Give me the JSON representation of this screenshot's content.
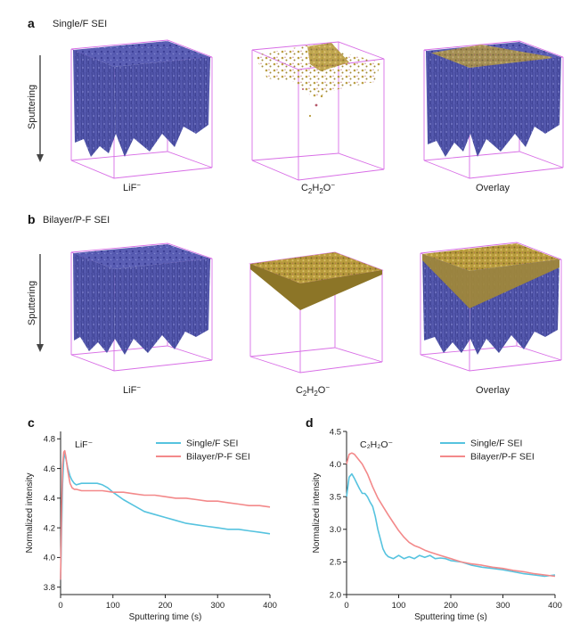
{
  "row_a": {
    "label": "a",
    "title": "Single/F SEI",
    "sputtering": "Sputtering",
    "captions": [
      "LiF",
      "C",
      "Overlay"
    ]
  },
  "row_b": {
    "label": "b",
    "title": "Bilayer/P-F SEI",
    "sputtering": "Sputtering",
    "captions": [
      "LiF",
      "C",
      "Overlay"
    ]
  },
  "species": {
    "lif_sup": "−",
    "c2h2o_parts": [
      "C",
      "2",
      "H",
      "2",
      "O",
      "−"
    ]
  },
  "colors": {
    "single": "#56c3df",
    "bilayer": "#f3898a",
    "lif": "#5b5fb5",
    "c2h2o": "#b79a3a",
    "box": "#d86ee6"
  },
  "chart_data": [
    {
      "panel": "c",
      "type": "line",
      "annotation": "LiF⁻",
      "xlabel": "Sputtering time (s)",
      "ylabel": "Normalized intensity",
      "xlim": [
        0,
        400
      ],
      "ylim": [
        3.75,
        4.85
      ],
      "xticks": [
        0,
        100,
        200,
        300,
        400
      ],
      "yticks": [
        3.8,
        4.0,
        4.2,
        4.4,
        4.6,
        4.8
      ],
      "legend_position": "top-right",
      "series": [
        {
          "name": "Single/F SEI",
          "color": "#56c3df",
          "x": [
            0,
            2,
            4,
            6,
            8,
            10,
            14,
            18,
            22,
            26,
            30,
            40,
            50,
            60,
            70,
            80,
            90,
            100,
            120,
            140,
            160,
            180,
            200,
            220,
            240,
            260,
            280,
            300,
            320,
            340,
            360,
            380,
            400
          ],
          "y": [
            3.85,
            4.2,
            4.5,
            4.66,
            4.7,
            4.67,
            4.6,
            4.55,
            4.52,
            4.5,
            4.49,
            4.5,
            4.5,
            4.5,
            4.5,
            4.49,
            4.47,
            4.44,
            4.39,
            4.35,
            4.31,
            4.29,
            4.27,
            4.25,
            4.23,
            4.22,
            4.21,
            4.2,
            4.19,
            4.19,
            4.18,
            4.17,
            4.16
          ]
        },
        {
          "name": "Bilayer/P-F SEI",
          "color": "#f3898a",
          "x": [
            0,
            2,
            4,
            6,
            8,
            10,
            14,
            18,
            22,
            26,
            30,
            40,
            60,
            80,
            100,
            120,
            140,
            160,
            180,
            200,
            220,
            240,
            260,
            280,
            300,
            320,
            340,
            360,
            380,
            400
          ],
          "y": [
            3.85,
            4.35,
            4.62,
            4.71,
            4.72,
            4.68,
            4.58,
            4.5,
            4.47,
            4.46,
            4.46,
            4.45,
            4.45,
            4.45,
            4.44,
            4.44,
            4.43,
            4.42,
            4.42,
            4.41,
            4.4,
            4.4,
            4.39,
            4.38,
            4.38,
            4.37,
            4.36,
            4.35,
            4.35,
            4.34
          ]
        }
      ]
    },
    {
      "panel": "d",
      "type": "line",
      "annotation": "C₂H₂O⁻",
      "xlabel": "Sputtering time (s)",
      "ylabel": "Normalized intensity",
      "xlim": [
        0,
        400
      ],
      "ylim": [
        2.0,
        4.5
      ],
      "xticks": [
        0,
        100,
        200,
        300,
        400
      ],
      "yticks": [
        2.0,
        2.5,
        3.0,
        3.5,
        4.0,
        4.5
      ],
      "legend_position": "top-right",
      "series": [
        {
          "name": "Single/F SEI",
          "color": "#56c3df",
          "x": [
            0,
            5,
            10,
            15,
            20,
            25,
            30,
            35,
            40,
            45,
            50,
            55,
            60,
            65,
            70,
            75,
            80,
            90,
            100,
            110,
            120,
            130,
            140,
            150,
            160,
            170,
            180,
            190,
            200,
            220,
            240,
            260,
            280,
            300,
            320,
            340,
            360,
            380,
            400
          ],
          "y": [
            3.5,
            3.8,
            3.85,
            3.78,
            3.7,
            3.62,
            3.55,
            3.55,
            3.5,
            3.42,
            3.35,
            3.2,
            3.0,
            2.85,
            2.7,
            2.62,
            2.58,
            2.55,
            2.6,
            2.55,
            2.58,
            2.55,
            2.6,
            2.57,
            2.6,
            2.55,
            2.56,
            2.55,
            2.52,
            2.5,
            2.45,
            2.42,
            2.4,
            2.38,
            2.35,
            2.32,
            2.3,
            2.28,
            2.3
          ]
        },
        {
          "name": "Bilayer/P-F SEI",
          "color": "#f3898a",
          "x": [
            0,
            5,
            10,
            15,
            20,
            30,
            40,
            50,
            60,
            70,
            80,
            90,
            100,
            110,
            120,
            130,
            140,
            150,
            160,
            180,
            200,
            220,
            240,
            260,
            280,
            300,
            320,
            340,
            360,
            380,
            400
          ],
          "y": [
            4.0,
            4.15,
            4.17,
            4.15,
            4.1,
            4.0,
            3.85,
            3.65,
            3.48,
            3.35,
            3.22,
            3.1,
            2.98,
            2.88,
            2.8,
            2.75,
            2.72,
            2.68,
            2.65,
            2.6,
            2.55,
            2.5,
            2.47,
            2.45,
            2.42,
            2.4,
            2.37,
            2.35,
            2.32,
            2.3,
            2.28
          ]
        }
      ]
    }
  ]
}
